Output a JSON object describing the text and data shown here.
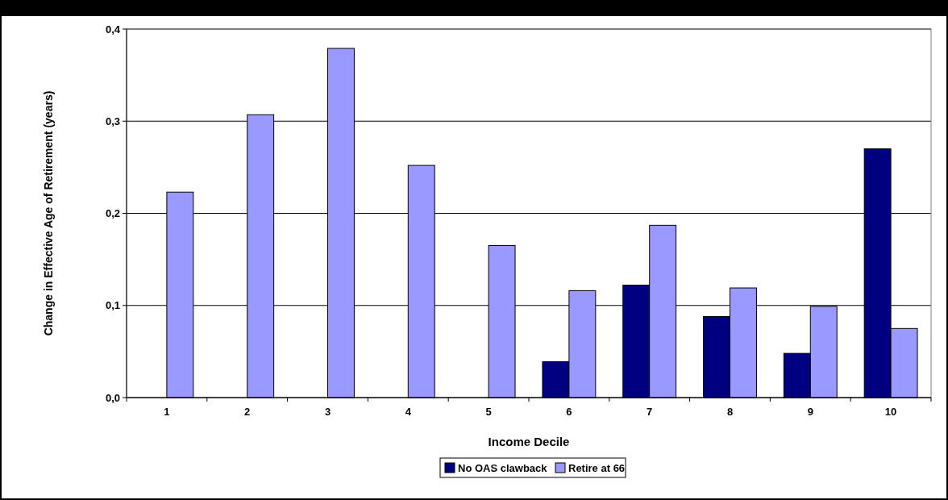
{
  "chart_data": {
    "type": "bar",
    "xlabel": "Income Decile",
    "ylabel": "Change in Effective Age of Retirement (years)",
    "categories": [
      "1",
      "2",
      "3",
      "4",
      "5",
      "6",
      "7",
      "8",
      "9",
      "10"
    ],
    "series": [
      {
        "name": "No OAS clawback",
        "color": "#000080",
        "values": [
          0,
          0,
          0,
          0,
          0,
          0.039,
          0.122,
          0.088,
          0.048,
          0.27
        ]
      },
      {
        "name": "Retire at 66",
        "color": "#9999ff",
        "values": [
          0.223,
          0.307,
          0.379,
          0.252,
          0.165,
          0.116,
          0.187,
          0.119,
          0.099,
          0.075
        ]
      }
    ],
    "ylim": [
      0,
      0.4
    ],
    "yticks": [
      {
        "value": 0,
        "label": "0,0"
      },
      {
        "value": 0.1,
        "label": "0,1"
      },
      {
        "value": 0.2,
        "label": "0,2"
      },
      {
        "value": 0.3,
        "label": "0,3"
      },
      {
        "value": 0.4,
        "label": "0,4"
      }
    ],
    "grid": "y",
    "legend": "bottom"
  }
}
